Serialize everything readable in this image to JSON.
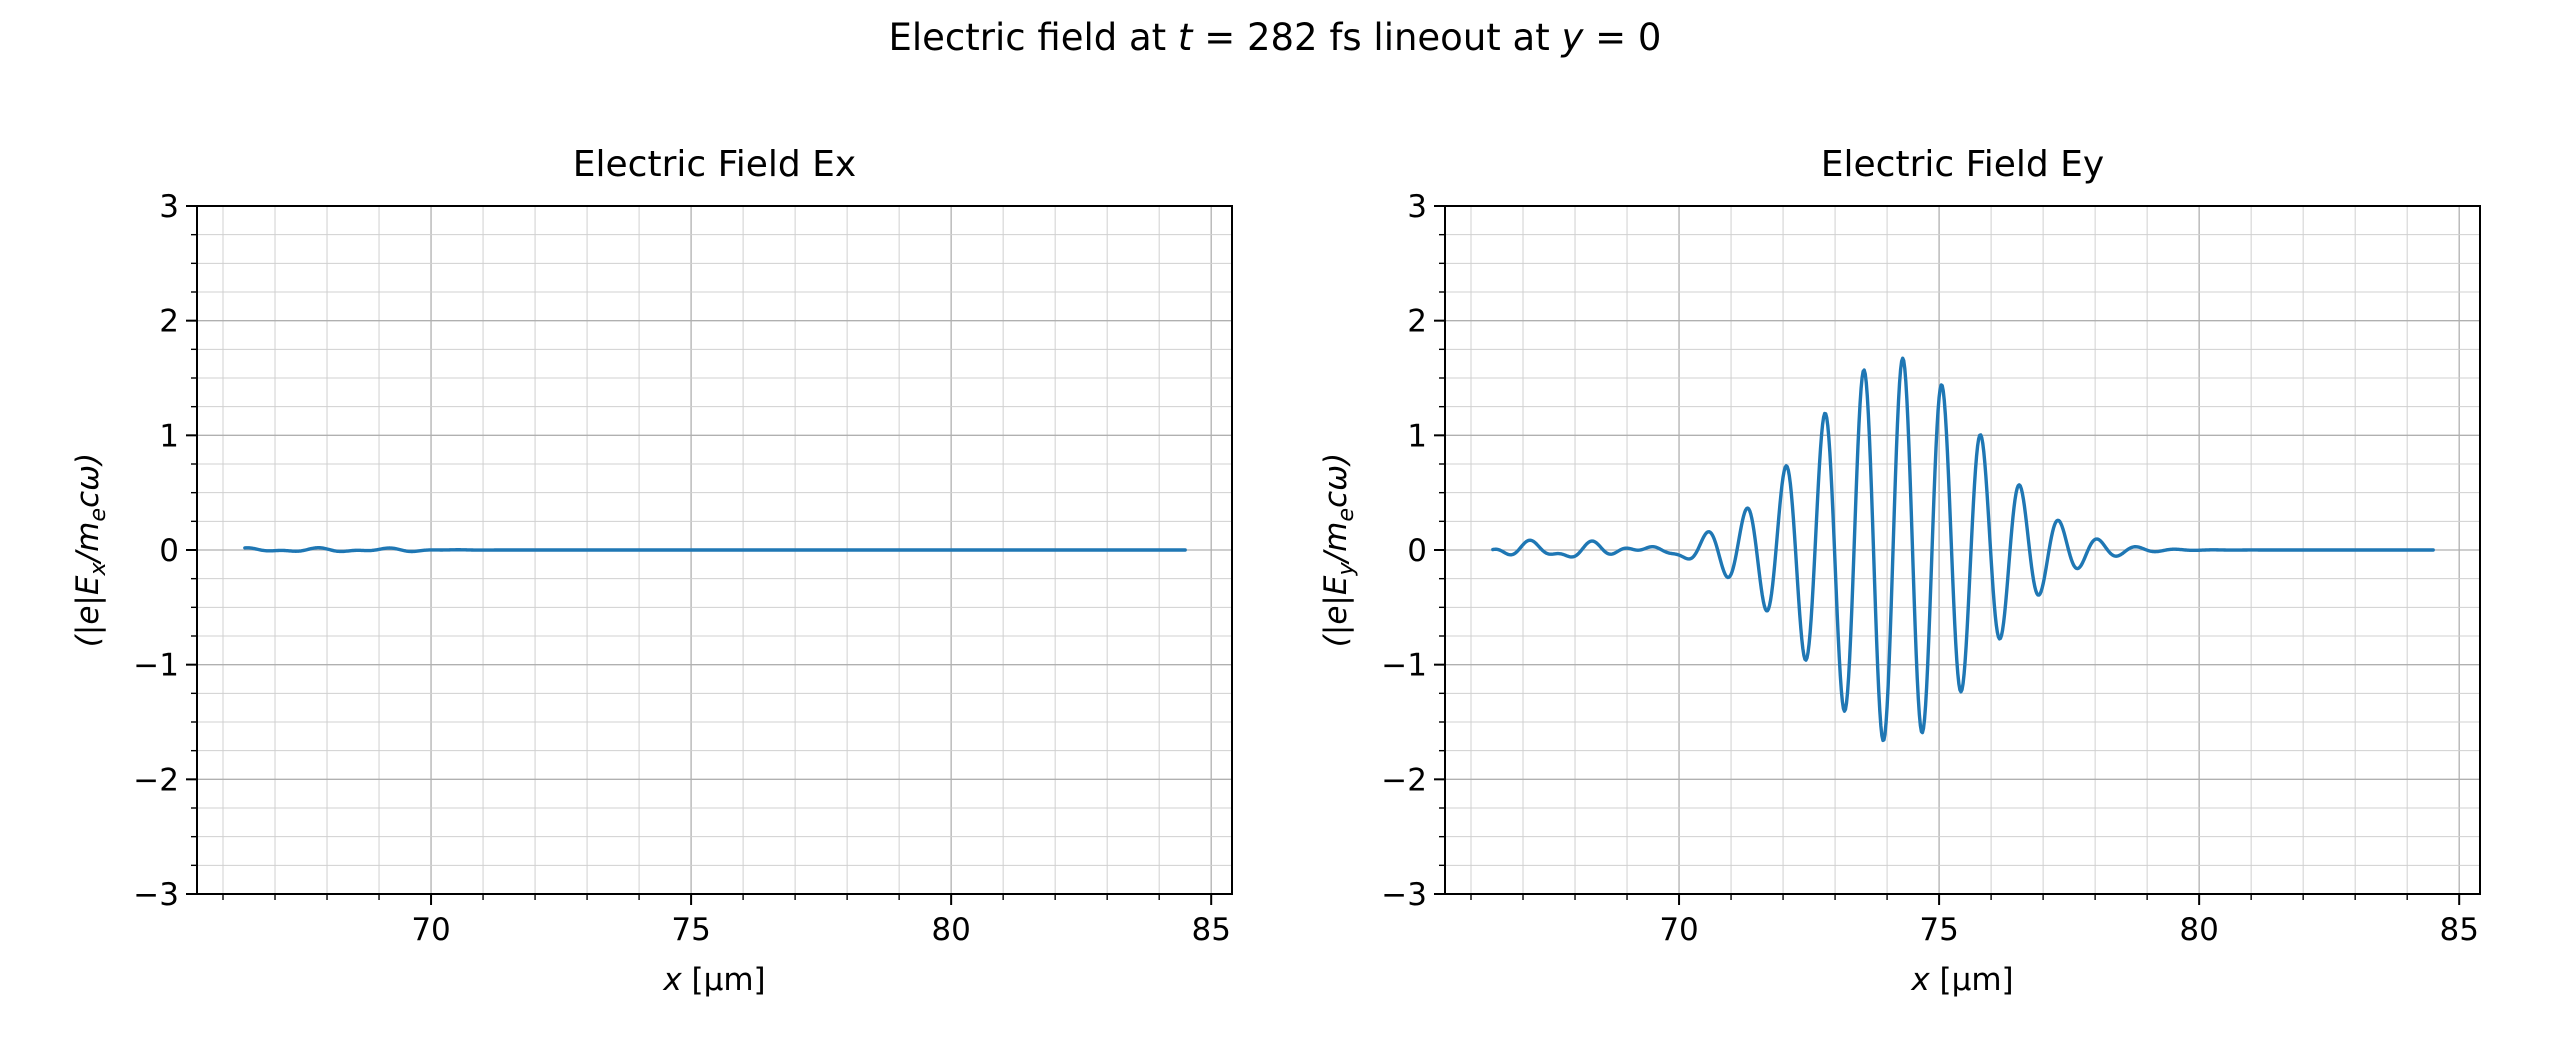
{
  "figure": {
    "background": "#ffffff",
    "suptitle": {
      "p1": "Electric field at ",
      "p2": "t",
      "p3": " = 282 fs lineout at ",
      "p4": "y",
      "p5": " = 0"
    }
  },
  "chart_data": [
    {
      "type": "line",
      "title": "Electric Field Ex",
      "xlabel": "x [μm]",
      "xlabel_parts": {
        "var": "x",
        "unit": " [μm]"
      },
      "ylabel": "(|e|Ex/mecω)",
      "ylabel_parts": {
        "p1": "(|e|E",
        "sub1": "x",
        "p2": "/m",
        "sub2": "e",
        "p3": "cω)"
      },
      "xlim": [
        65.5,
        85.4
      ],
      "ylim": [
        -3,
        3
      ],
      "xticks": [
        70,
        75,
        80,
        85
      ],
      "yticks": [
        -3,
        -2,
        -1,
        0,
        1,
        2,
        3
      ],
      "x_minor_step": 1,
      "y_minor_step": 0.25,
      "grid": {
        "on": true,
        "major_color": "#b0b0b0",
        "minor_color": "#d0d0d0"
      },
      "line_color": "#1f77b4",
      "legend": null,
      "series": {
        "name": "Ex",
        "x_start": 66.42,
        "x_end": 84.5,
        "x_step": 0.02,
        "summary": "Ex is essentially zero over the whole lineout (flat line at y = 0, tiny ripple < 0.02 before x = 70 μm)",
        "signal": {
          "pulse": null,
          "noise": {
            "components": [
              [
                0.012,
                1.3,
                0.5
              ],
              [
                0.008,
                0.7,
                2.1
              ]
            ],
            "fade_x": 70.0,
            "fade_width": 0.3
          }
        }
      }
    },
    {
      "type": "line",
      "title": "Electric Field Ey",
      "xlabel": "x [μm]",
      "xlabel_parts": {
        "var": "x",
        "unit": " [μm]"
      },
      "ylabel": "(|e|Ey/mecω)",
      "ylabel_parts": {
        "p1": "(|e|E",
        "sub1": "y",
        "p2": "/m",
        "sub2": "e",
        "p3": "cω)"
      },
      "xlim": [
        65.5,
        85.4
      ],
      "ylim": [
        -3,
        3
      ],
      "xticks": [
        70,
        75,
        80,
        85
      ],
      "yticks": [
        -3,
        -2,
        -1,
        0,
        1,
        2,
        3
      ],
      "x_minor_step": 1,
      "y_minor_step": 0.25,
      "grid": {
        "on": true,
        "major_color": "#b0b0b0",
        "minor_color": "#d0d0d0"
      },
      "line_color": "#1f77b4",
      "legend": null,
      "series": {
        "name": "Ey",
        "x_start": 66.42,
        "x_end": 84.5,
        "x_step": 0.02,
        "summary": "Gaussian laser pulse wave packet centered near x = 74.1 μm, peak amplitude ±1.65, carrier wavelength ≈ 0.75 μm, envelope dies out by x ≈ 78.5 μm; small ripple (±0.06) for x < 70.3 μm; flat zero afterwards",
        "signal": {
          "pulse": {
            "center": 74.15,
            "sigma": 2.3,
            "wavelength": 0.75,
            "amplitude": 1.68,
            "phase": 0.3
          },
          "noise": {
            "components": [
              [
                0.045,
                1.1,
                1.0
              ],
              [
                0.03,
                0.6,
                2.4
              ],
              [
                0.02,
                1.9,
                0.3
              ]
            ],
            "fade_x": 70.3,
            "fade_width": 0.2
          }
        }
      }
    }
  ]
}
